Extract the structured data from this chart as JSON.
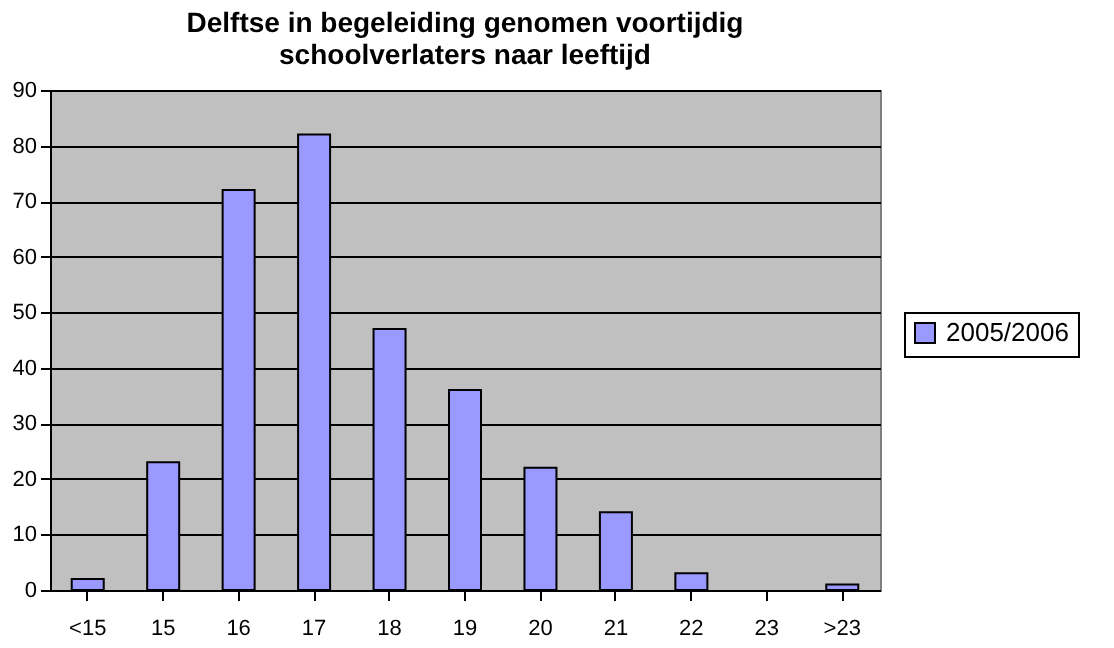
{
  "chart_data": {
    "type": "bar",
    "title": "Delftse in begeleiding genomen voortijdig schoolverlaters naar leeftijd",
    "categories": [
      "<15",
      "15",
      "16",
      "17",
      "18",
      "19",
      "20",
      "21",
      "22",
      "23",
      ">23"
    ],
    "series": [
      {
        "name": "2005/2006",
        "color": "#9999ff",
        "values": [
          2,
          23,
          72,
          82,
          47,
          36,
          22,
          14,
          3,
          0,
          1
        ]
      }
    ],
    "ylim": [
      0,
      90
    ],
    "yticks": [
      0,
      10,
      20,
      30,
      40,
      50,
      60,
      70,
      80,
      90
    ],
    "grid": "y",
    "legend": "right"
  }
}
